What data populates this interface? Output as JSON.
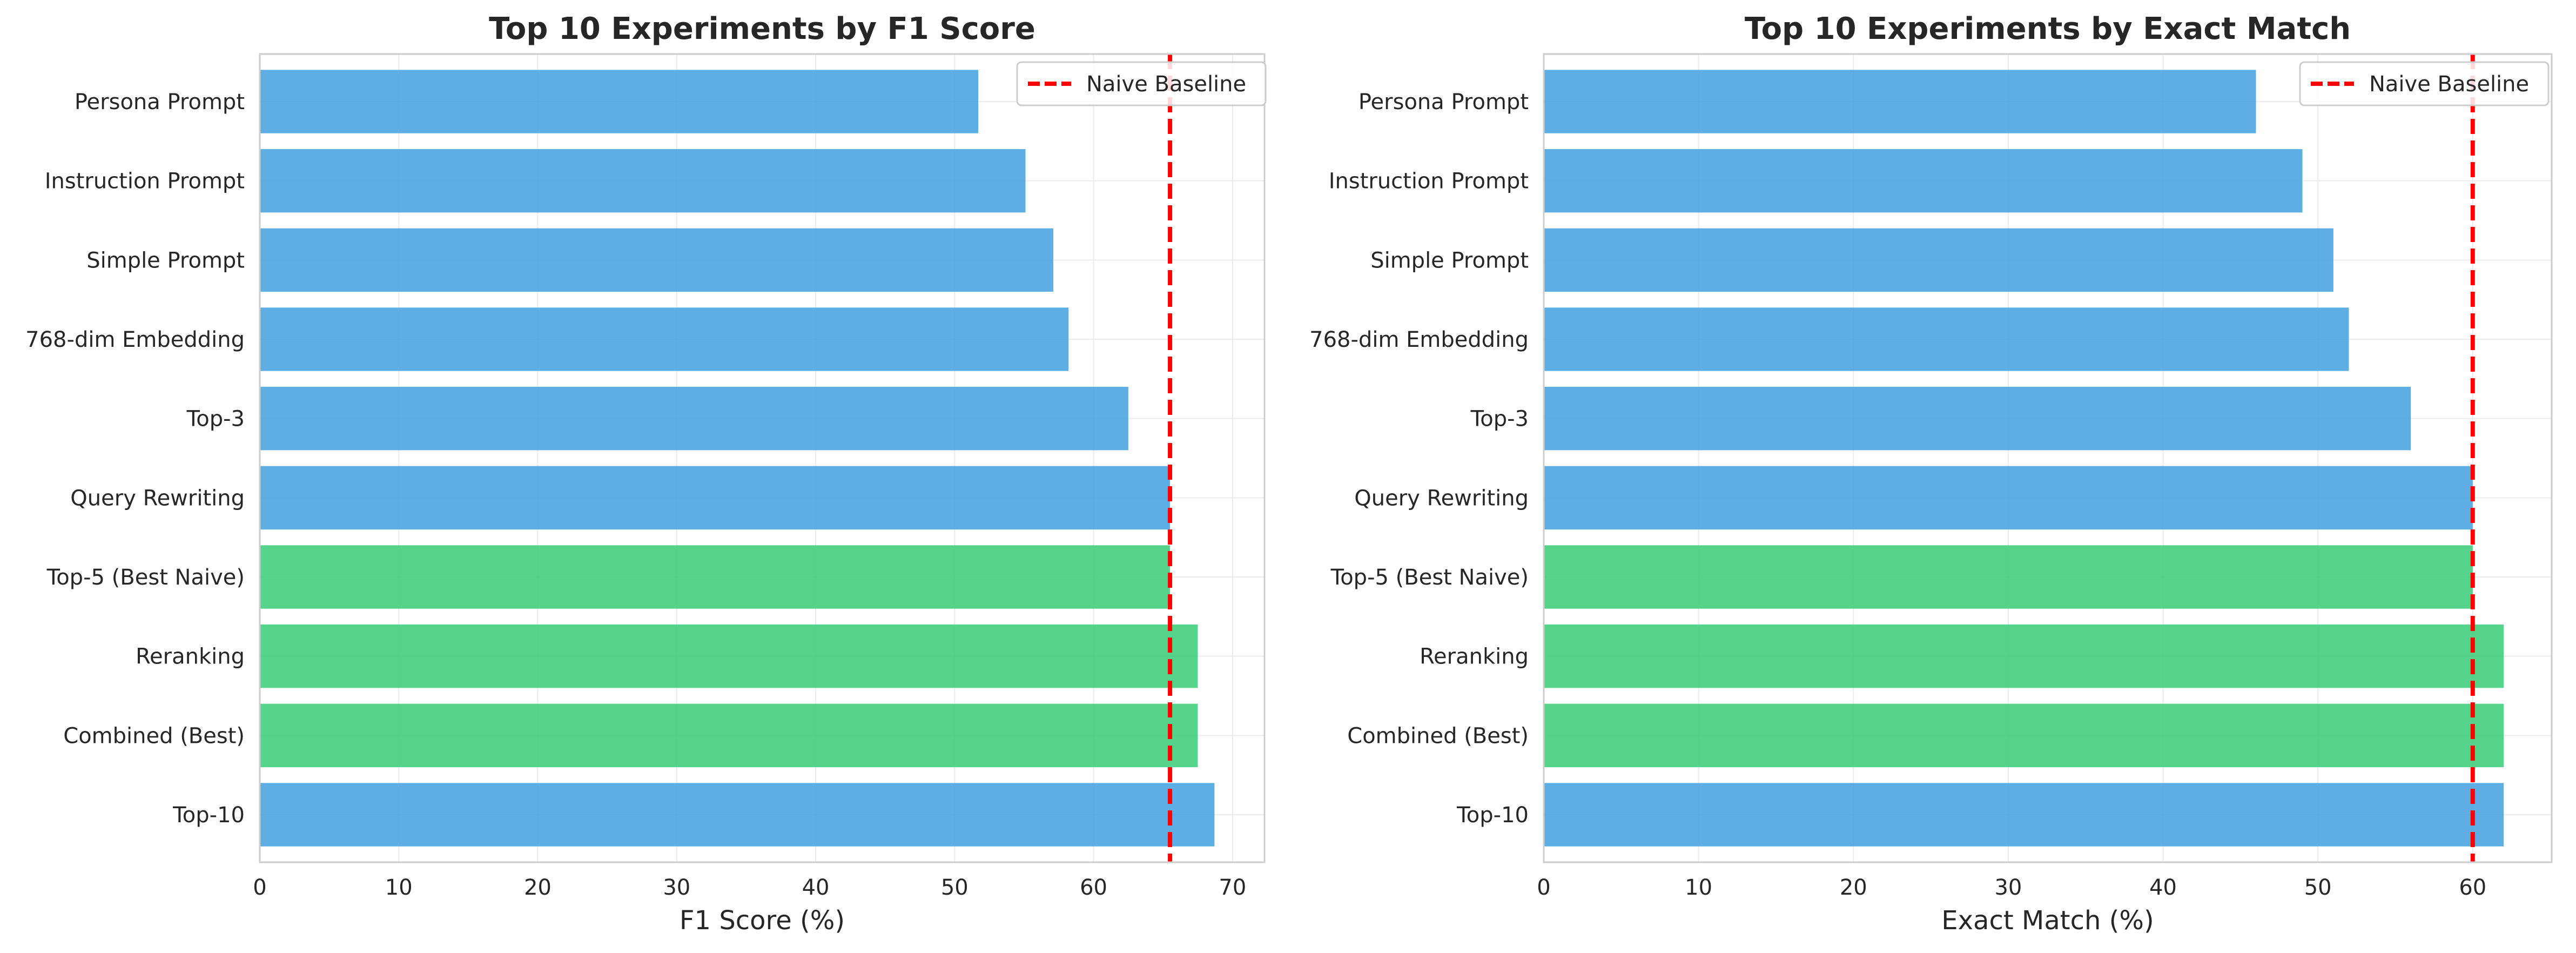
{
  "chart_data": [
    {
      "type": "bar",
      "orientation": "horizontal",
      "title": "Top 10 Experiments by F1 Score",
      "xlabel": "F1 Score (%)",
      "ylabel": "",
      "categories": [
        "Top-10",
        "Combined (Best)",
        "Reranking",
        "Top-5 (Best Naive)",
        "Query Rewriting",
        "Top-3",
        "768-dim Embedding",
        "Simple Prompt",
        "Instruction Prompt",
        "Persona Prompt"
      ],
      "values": [
        68.7,
        67.5,
        67.5,
        65.5,
        65.5,
        62.5,
        58.2,
        57.1,
        55.1,
        51.7
      ],
      "highlight": [
        false,
        true,
        true,
        true,
        false,
        false,
        false,
        false,
        false,
        false
      ],
      "xlim": [
        0,
        72.3
      ],
      "xticks": [
        0,
        10,
        20,
        30,
        40,
        50,
        60,
        70
      ],
      "baseline": {
        "name": "Naive Baseline",
        "value": 65.5
      },
      "grid": true,
      "legend": "top-right"
    },
    {
      "type": "bar",
      "orientation": "horizontal",
      "title": "Top 10 Experiments by Exact Match",
      "xlabel": "Exact Match (%)",
      "ylabel": "",
      "categories": [
        "Top-10",
        "Combined (Best)",
        "Reranking",
        "Top-5 (Best Naive)",
        "Query Rewriting",
        "Top-3",
        "768-dim Embedding",
        "Simple Prompt",
        "Instruction Prompt",
        "Persona Prompt"
      ],
      "values": [
        62,
        62,
        62,
        60,
        60,
        56,
        52,
        51,
        49,
        46
      ],
      "highlight": [
        false,
        true,
        true,
        true,
        false,
        false,
        false,
        false,
        false,
        false
      ],
      "xlim": [
        0,
        65.1
      ],
      "xticks": [
        0,
        10,
        20,
        30,
        40,
        50,
        60
      ],
      "baseline": {
        "name": "Naive Baseline",
        "value": 60
      },
      "grid": true,
      "legend": "top-right"
    }
  ],
  "colors": {
    "bar": "#4ea5e0",
    "highlight": "#45cf7e",
    "baseline": "#ff0000",
    "grid": "#ebebeb",
    "spine": "#cccccc",
    "text": "#262626"
  }
}
